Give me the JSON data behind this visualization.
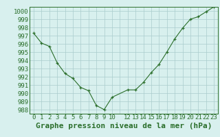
{
  "x": [
    0,
    1,
    2,
    3,
    4,
    5,
    6,
    7,
    8,
    9,
    10,
    12,
    13,
    14,
    15,
    16,
    17,
    18,
    19,
    20,
    21,
    22,
    23
  ],
  "y": [
    997.3,
    996.1,
    995.7,
    993.7,
    992.4,
    991.8,
    990.7,
    990.3,
    988.5,
    988.0,
    989.5,
    990.4,
    990.4,
    991.3,
    992.5,
    993.5,
    995.0,
    996.6,
    997.9,
    999.0,
    999.3,
    999.9,
    1000.5
  ],
  "xlim": [
    -0.5,
    23.5
  ],
  "ylim": [
    987.5,
    1000.5
  ],
  "yticks": [
    988,
    989,
    990,
    991,
    992,
    993,
    994,
    995,
    996,
    997,
    998,
    999,
    1000
  ],
  "xtick_labels": [
    "0",
    "1",
    "2",
    "3",
    "4",
    "5",
    "6",
    "7",
    "8",
    "9",
    "10",
    "",
    "12",
    "13",
    "14",
    "15",
    "16",
    "17",
    "18",
    "19",
    "20",
    "21",
    "22",
    "23"
  ],
  "xlabel": "Graphe pression niveau de la mer (hPa)",
  "line_color": "#2a6e2a",
  "marker": "+",
  "bg_color": "#d8f0ee",
  "grid_color": "#aacccc",
  "text_color": "#2a6e2a",
  "xlabel_fontsize": 8,
  "tick_fontsize": 6.5
}
